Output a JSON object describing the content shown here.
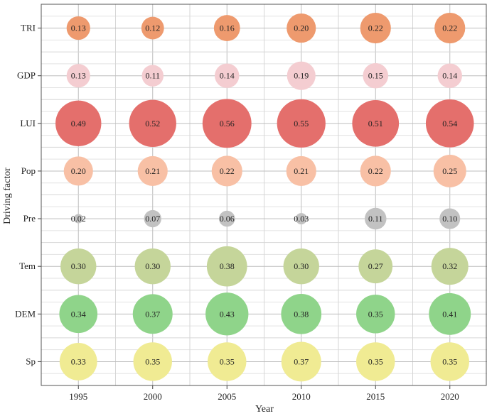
{
  "chart_data": {
    "type": "bubble",
    "title": "",
    "xlabel": "Year",
    "ylabel": "Driving factor",
    "x": [
      "1995",
      "2000",
      "2005",
      "2010",
      "2015",
      "2020"
    ],
    "y": [
      "TRI",
      "GDP",
      "LUI",
      "Pop",
      "Pre",
      "Tem",
      "DEM",
      "Sp"
    ],
    "grid": true,
    "series": [
      {
        "factor": "TRI",
        "color": "#EE9A6E",
        "values": [
          0.13,
          0.12,
          0.16,
          0.2,
          0.22,
          0.22
        ]
      },
      {
        "factor": "GDP",
        "color": "#F4CDD1",
        "values": [
          0.13,
          0.11,
          0.14,
          0.19,
          0.15,
          0.14
        ]
      },
      {
        "factor": "LUI",
        "color": "#E46F6C",
        "values": [
          0.49,
          0.52,
          0.56,
          0.55,
          0.51,
          0.54
        ]
      },
      {
        "factor": "Pop",
        "color": "#F8C0A5",
        "values": [
          0.2,
          0.21,
          0.22,
          0.21,
          0.22,
          0.25
        ]
      },
      {
        "factor": "Pre",
        "color": "#C2C2C2",
        "values": [
          0.02,
          0.07,
          0.06,
          0.03,
          0.11,
          0.1
        ]
      },
      {
        "factor": "Tem",
        "color": "#C5D59A",
        "values": [
          0.3,
          0.3,
          0.38,
          0.3,
          0.27,
          0.32
        ]
      },
      {
        "factor": "DEM",
        "color": "#8FD48A",
        "values": [
          0.34,
          0.37,
          0.43,
          0.38,
          0.35,
          0.41
        ]
      },
      {
        "factor": "Sp",
        "color": "#F0EB93",
        "values": [
          0.33,
          0.35,
          0.35,
          0.37,
          0.35,
          0.35
        ]
      }
    ]
  }
}
